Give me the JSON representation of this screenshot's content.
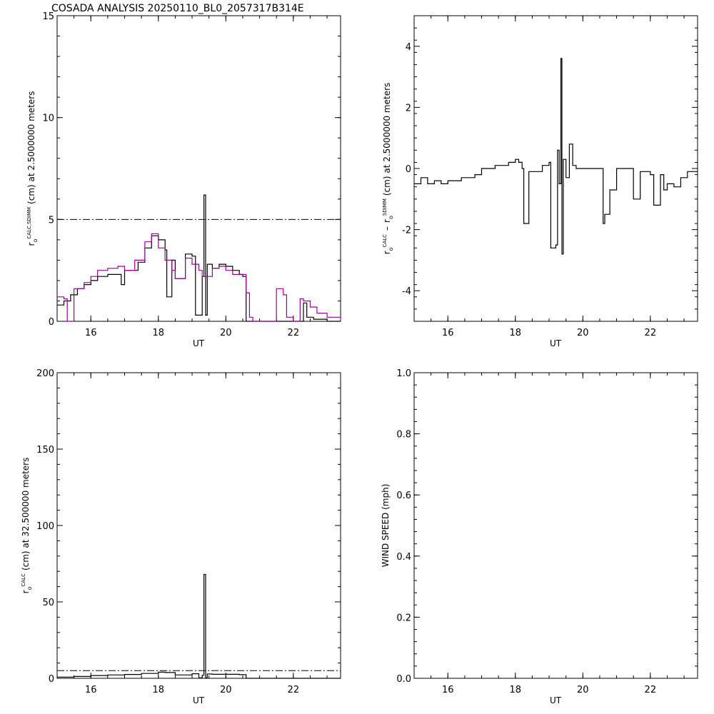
{
  "title": "COSADA ANALYSIS 20250110_BL0_2057317B314E",
  "chart_data": [
    {
      "type": "line",
      "xlabel": "UT",
      "ylabel_main": "r",
      "ylabel_sub": "o",
      "ylabel_sup": "CALC,SDIMM",
      "ylabel_rest": "(cm)  at  2.5000000 meters",
      "xlim": [
        15,
        23.4
      ],
      "ylim": [
        0,
        15
      ],
      "xticks": [
        16,
        18,
        20,
        22
      ],
      "yticks": [
        0,
        5,
        10,
        15
      ],
      "reference_line": 5,
      "series": [
        {
          "color": "#000000",
          "x": [
            15.0,
            15.2,
            15.4,
            15.6,
            15.8,
            16.0,
            16.2,
            16.5,
            16.8,
            16.9,
            17.0,
            17.2,
            17.4,
            17.6,
            17.8,
            18.0,
            18.1,
            18.2,
            18.25,
            18.3,
            18.4,
            18.5,
            18.6,
            18.8,
            19.0,
            19.1,
            19.2,
            19.3,
            19.35,
            19.4,
            19.45,
            19.6,
            19.8,
            20.0,
            20.2,
            20.4,
            20.5,
            20.6,
            20.8,
            21.0,
            21.5,
            21.8,
            22.0,
            22.3,
            22.4,
            22.6,
            23.0,
            23.4
          ],
          "y": [
            0.8,
            1.0,
            1.3,
            1.6,
            1.8,
            2.0,
            2.2,
            2.3,
            2.3,
            1.8,
            2.5,
            2.5,
            2.9,
            3.6,
            4.2,
            4.0,
            4.0,
            3.5,
            1.2,
            1.2,
            3.0,
            2.1,
            2.1,
            3.3,
            3.2,
            0.3,
            0.3,
            2.2,
            6.2,
            0.3,
            2.8,
            2.6,
            2.8,
            2.7,
            2.5,
            2.3,
            2.2,
            0.0,
            0.0,
            0.0,
            0.0,
            0.0,
            0.0,
            0.9,
            0.2,
            0.1,
            0.0,
            0.0
          ]
        },
        {
          "color": "#990099",
          "x": [
            15.0,
            15.2,
            15.3,
            15.5,
            15.8,
            16.0,
            16.2,
            16.5,
            16.8,
            17.0,
            17.3,
            17.6,
            17.8,
            18.0,
            18.2,
            18.4,
            18.5,
            18.6,
            18.8,
            19.0,
            19.2,
            19.3,
            19.4,
            19.6,
            19.8,
            20.0,
            20.2,
            20.4,
            20.6,
            20.7,
            20.8,
            21.0,
            21.4,
            21.5,
            21.7,
            21.8,
            22.0,
            22.2,
            22.3,
            22.5,
            22.7,
            23.0,
            23.4
          ],
          "y": [
            1.2,
            1.1,
            0.0,
            1.6,
            1.9,
            2.2,
            2.5,
            2.6,
            2.7,
            2.5,
            3.0,
            3.9,
            4.3,
            3.6,
            3.0,
            2.5,
            2.1,
            2.1,
            3.1,
            2.8,
            2.5,
            2.2,
            2.2,
            2.6,
            2.7,
            2.5,
            2.3,
            2.3,
            1.4,
            0.2,
            0.0,
            0.0,
            0.0,
            1.6,
            1.3,
            0.2,
            0.0,
            1.1,
            1.0,
            0.7,
            0.4,
            0.2,
            0.1
          ]
        }
      ]
    },
    {
      "type": "line",
      "xlabel": "UT",
      "ylabel_a": "r",
      "ylabel_a_sub": "o",
      "ylabel_a_sup": "CALC",
      "ylabel_dash": "–",
      "ylabel_b": "r",
      "ylabel_b_sub": "o",
      "ylabel_b_sup": "SDIMM",
      "ylabel_rest": "(cm)  at  2.5000000 meters",
      "xlim": [
        15,
        23.4
      ],
      "ylim": [
        -5,
        5
      ],
      "xticks": [
        16,
        18,
        20,
        22
      ],
      "yticks": [
        -4,
        -2,
        0,
        2,
        4
      ],
      "series": [
        {
          "color": "#000000",
          "x": [
            15.0,
            15.2,
            15.4,
            15.6,
            15.8,
            16.0,
            16.2,
            16.4,
            16.6,
            16.8,
            17.0,
            17.2,
            17.4,
            17.6,
            17.8,
            18.0,
            18.1,
            18.2,
            18.25,
            18.3,
            18.4,
            18.6,
            18.8,
            19.0,
            19.05,
            19.1,
            19.2,
            19.25,
            19.3,
            19.35,
            19.38,
            19.42,
            19.5,
            19.6,
            19.7,
            19.8,
            20.0,
            20.2,
            20.4,
            20.5,
            20.6,
            20.65,
            20.7,
            20.8,
            21.0,
            21.4,
            21.5,
            21.6,
            21.7,
            22.0,
            22.1,
            22.2,
            22.3,
            22.4,
            22.5,
            22.7,
            22.9,
            23.1,
            23.4
          ],
          "y": [
            -0.5,
            -0.3,
            -0.5,
            -0.4,
            -0.5,
            -0.4,
            -0.4,
            -0.3,
            -0.3,
            -0.2,
            0.0,
            0.0,
            0.1,
            0.1,
            0.2,
            0.3,
            0.2,
            0.0,
            -1.8,
            -1.8,
            -0.1,
            -0.1,
            0.1,
            0.2,
            -2.6,
            -2.6,
            -2.5,
            0.6,
            -0.5,
            3.6,
            -2.8,
            0.3,
            -0.3,
            0.8,
            0.1,
            0.0,
            0.0,
            0.0,
            0.0,
            0.0,
            -1.8,
            -1.5,
            -1.5,
            -0.7,
            0.0,
            0.0,
            -1.0,
            -1.0,
            -0.1,
            -0.2,
            -1.2,
            -1.2,
            -0.2,
            -0.7,
            -0.5,
            -0.6,
            -0.3,
            -0.1,
            -0.1
          ]
        }
      ]
    },
    {
      "type": "line",
      "xlabel": "UT",
      "ylabel_main": "r",
      "ylabel_sub": "o",
      "ylabel_sup": "CALC",
      "ylabel_rest": "(cm)  at  32.500000 meters",
      "xlim": [
        15,
        23.4
      ],
      "ylim": [
        0,
        200
      ],
      "xticks": [
        16,
        18,
        20,
        22
      ],
      "yticks": [
        0,
        50,
        100,
        150,
        200
      ],
      "reference_line": 5,
      "series": [
        {
          "color": "#000000",
          "x": [
            15.0,
            15.5,
            16.0,
            16.5,
            17.0,
            17.5,
            18.0,
            18.2,
            18.5,
            19.0,
            19.2,
            19.3,
            19.35,
            19.4,
            19.45,
            19.6,
            20.0,
            20.4,
            20.6,
            21.0,
            22.0,
            23.4
          ],
          "y": [
            0.8,
            1.2,
            1.8,
            2.2,
            2.5,
            3.2,
            4.0,
            3.8,
            2.2,
            3.0,
            0.3,
            2.0,
            68,
            0.3,
            2.8,
            2.6,
            2.6,
            2.4,
            0.0,
            0.0,
            0.0,
            0.0
          ]
        }
      ]
    },
    {
      "type": "line",
      "xlabel": "UT",
      "ylabel_main": "WIND SPEED  (mph)",
      "xlim": [
        15,
        23.4
      ],
      "ylim": [
        0,
        1
      ],
      "xticks": [
        16,
        18,
        20,
        22
      ],
      "yticks": [
        0.0,
        0.2,
        0.4,
        0.6,
        0.8,
        1.0
      ],
      "series": []
    }
  ]
}
